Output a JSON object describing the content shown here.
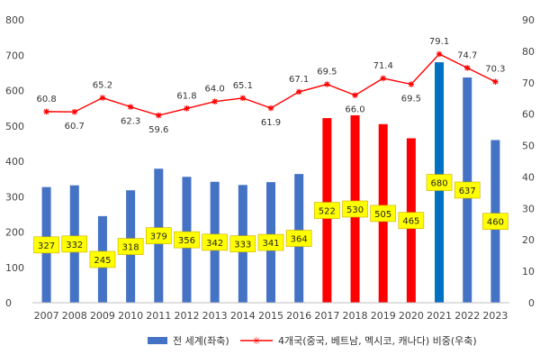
{
  "chart_data": {
    "type": "bar",
    "categories": [
      "2007",
      "2008",
      "2009",
      "2010",
      "2011",
      "2012",
      "2013",
      "2014",
      "2015",
      "2016",
      "2017",
      "2018",
      "2019",
      "2020",
      "2021",
      "2022",
      "2023"
    ],
    "series": [
      {
        "name": "전 세계(좌축)",
        "type": "bar",
        "axis": "left",
        "values": [
          327,
          332,
          245,
          318,
          379,
          356,
          342,
          333,
          341,
          364,
          522,
          530,
          505,
          465,
          680,
          637,
          460
        ],
        "colors": [
          "#4472C4",
          "#4472C4",
          "#4472C4",
          "#4472C4",
          "#4472C4",
          "#4472C4",
          "#4472C4",
          "#4472C4",
          "#4472C4",
          "#4472C4",
          "#FF0000",
          "#FF0000",
          "#FF0000",
          "#FF0000",
          "#0070C0",
          "#4472C4",
          "#4472C4"
        ]
      },
      {
        "name": "4개국(중국, 베트남, 멕시코, 캐나다) 비중(우축)",
        "type": "line",
        "axis": "right",
        "values": [
          60.8,
          60.7,
          65.2,
          62.3,
          59.6,
          61.8,
          64.0,
          65.1,
          61.9,
          67.1,
          69.5,
          66.0,
          71.4,
          69.5,
          79.1,
          74.7,
          70.3
        ],
        "labels": [
          "60.8",
          "60.7",
          "65.2",
          "62.3",
          "59.6",
          "61.8",
          "64.0",
          "65.1",
          "61.9",
          "67.1",
          "69.5",
          "66.0",
          "71.4",
          "69.5",
          "79.1",
          "74.7",
          "70.3"
        ],
        "color": "#FF0000",
        "marker": "asterisk"
      }
    ],
    "ylim_left": [
      0,
      800
    ],
    "yticks_left": [
      "0",
      "100",
      "200",
      "300",
      "400",
      "500",
      "600",
      "700",
      "800"
    ],
    "ylim_right": [
      0,
      90
    ],
    "yticks_right": [
      "0",
      "10",
      "20",
      "30",
      "40",
      "50",
      "60",
      "70",
      "80",
      "90"
    ],
    "bar_label_style": {
      "background": "#FFFF00",
      "border": "#C9A800"
    },
    "grid": false,
    "legend": "bottom"
  }
}
